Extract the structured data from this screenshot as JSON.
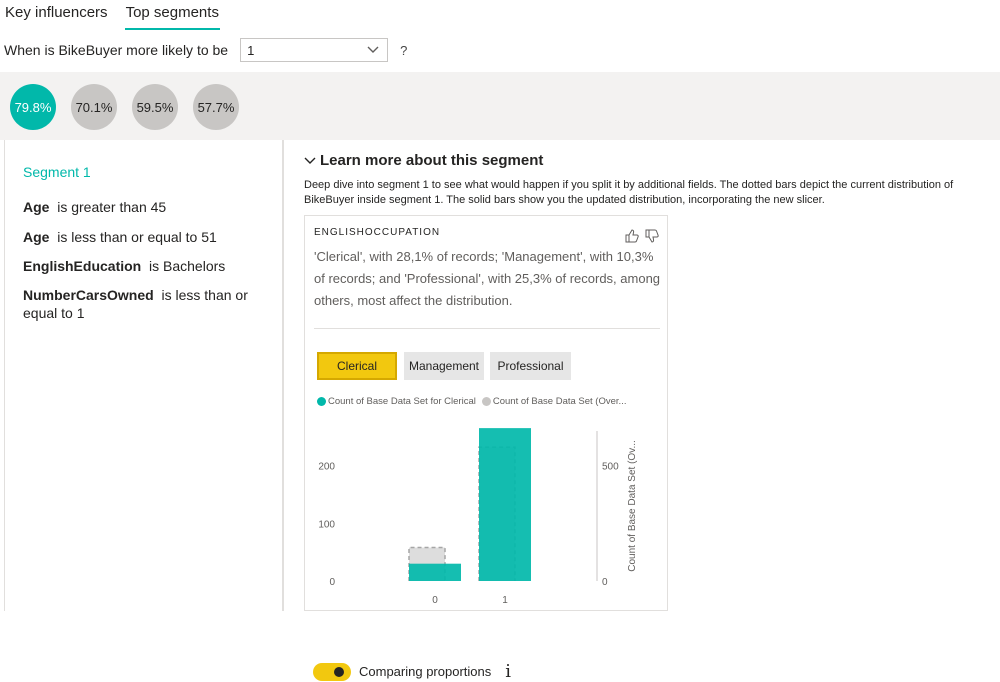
{
  "tabs": [
    {
      "label": "Key influencers",
      "active": false
    },
    {
      "label": "Top segments",
      "active": true
    }
  ],
  "question": {
    "text": "When is BikeBuyer more likely to be",
    "selected_value": "1",
    "help": "?"
  },
  "segments": [
    "79.8%",
    "70.1%",
    "59.5%",
    "57.7%"
  ],
  "selected_segment_index": 0,
  "left_panel": {
    "title": "Segment 1",
    "conditions": [
      {
        "field": "Age",
        "rule": "is greater than 45"
      },
      {
        "field": "Age",
        "rule": "is less than or equal to 51"
      },
      {
        "field": "EnglishEducation",
        "rule": "is Bachelors"
      },
      {
        "field": "NumberCarsOwned",
        "rule": "is less than or equal to 1"
      }
    ]
  },
  "learn_more": {
    "heading": "Learn more about this segment",
    "description": "Deep dive into segment 1 to see what would happen if you split it by additional fields. The dotted bars depict the current distribution of BikeBuyer inside segment 1. The solid bars show you the updated distribution, incorporating the new slicer."
  },
  "card": {
    "title": "ENGLISHOCCUPATION",
    "text": "'Clerical', with 28,1% of records; 'Management', with 10,3% of records; and 'Professional', with 25,3% of records, among others, most affect the distribution.",
    "buttons": [
      "Clerical",
      "Management",
      "Professional"
    ],
    "active_button": "Clerical",
    "toggle_label": "Comparing proportions",
    "info_glyph": "i"
  },
  "chart_data": {
    "type": "bar",
    "categories": [
      "0",
      "1"
    ],
    "series": [
      {
        "name": "Count of Base Data Set for Clerical",
        "axis": "left",
        "values": [
          30,
          265
        ],
        "color": "#01b8aa",
        "style": "solid"
      },
      {
        "name": "Count of Base Data Set (Over...",
        "axis": "right",
        "values": [
          145,
          580
        ],
        "color": "#c8c6c4",
        "style": "dashed"
      }
    ],
    "y_left": {
      "ticks": [
        "0",
        "100",
        "200"
      ],
      "range": [
        0,
        260
      ]
    },
    "y_right": {
      "ticks": [
        "0",
        "500"
      ],
      "range": [
        0,
        650
      ],
      "label": "Count of Base Data Set (Ov..."
    },
    "legend_position": "top"
  },
  "colors": {
    "accent": "#01b8aa",
    "highlight": "#f2c80f",
    "neutral": "#c8c6c4"
  }
}
